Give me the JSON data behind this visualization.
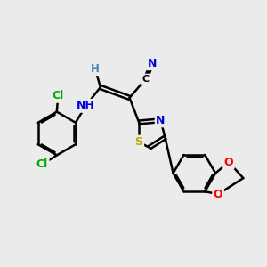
{
  "background_color": "#ebebeb",
  "bond_color": "#000000",
  "bond_width": 1.8,
  "atom_colors": {
    "N": "#0000dd",
    "S": "#bbaa00",
    "O": "#ff0000",
    "Cl": "#00aa00",
    "C": "#000000",
    "H": "#4488aa"
  },
  "font_size": 8.5,
  "fig_size": [
    3.0,
    3.0
  ],
  "dpi": 100
}
